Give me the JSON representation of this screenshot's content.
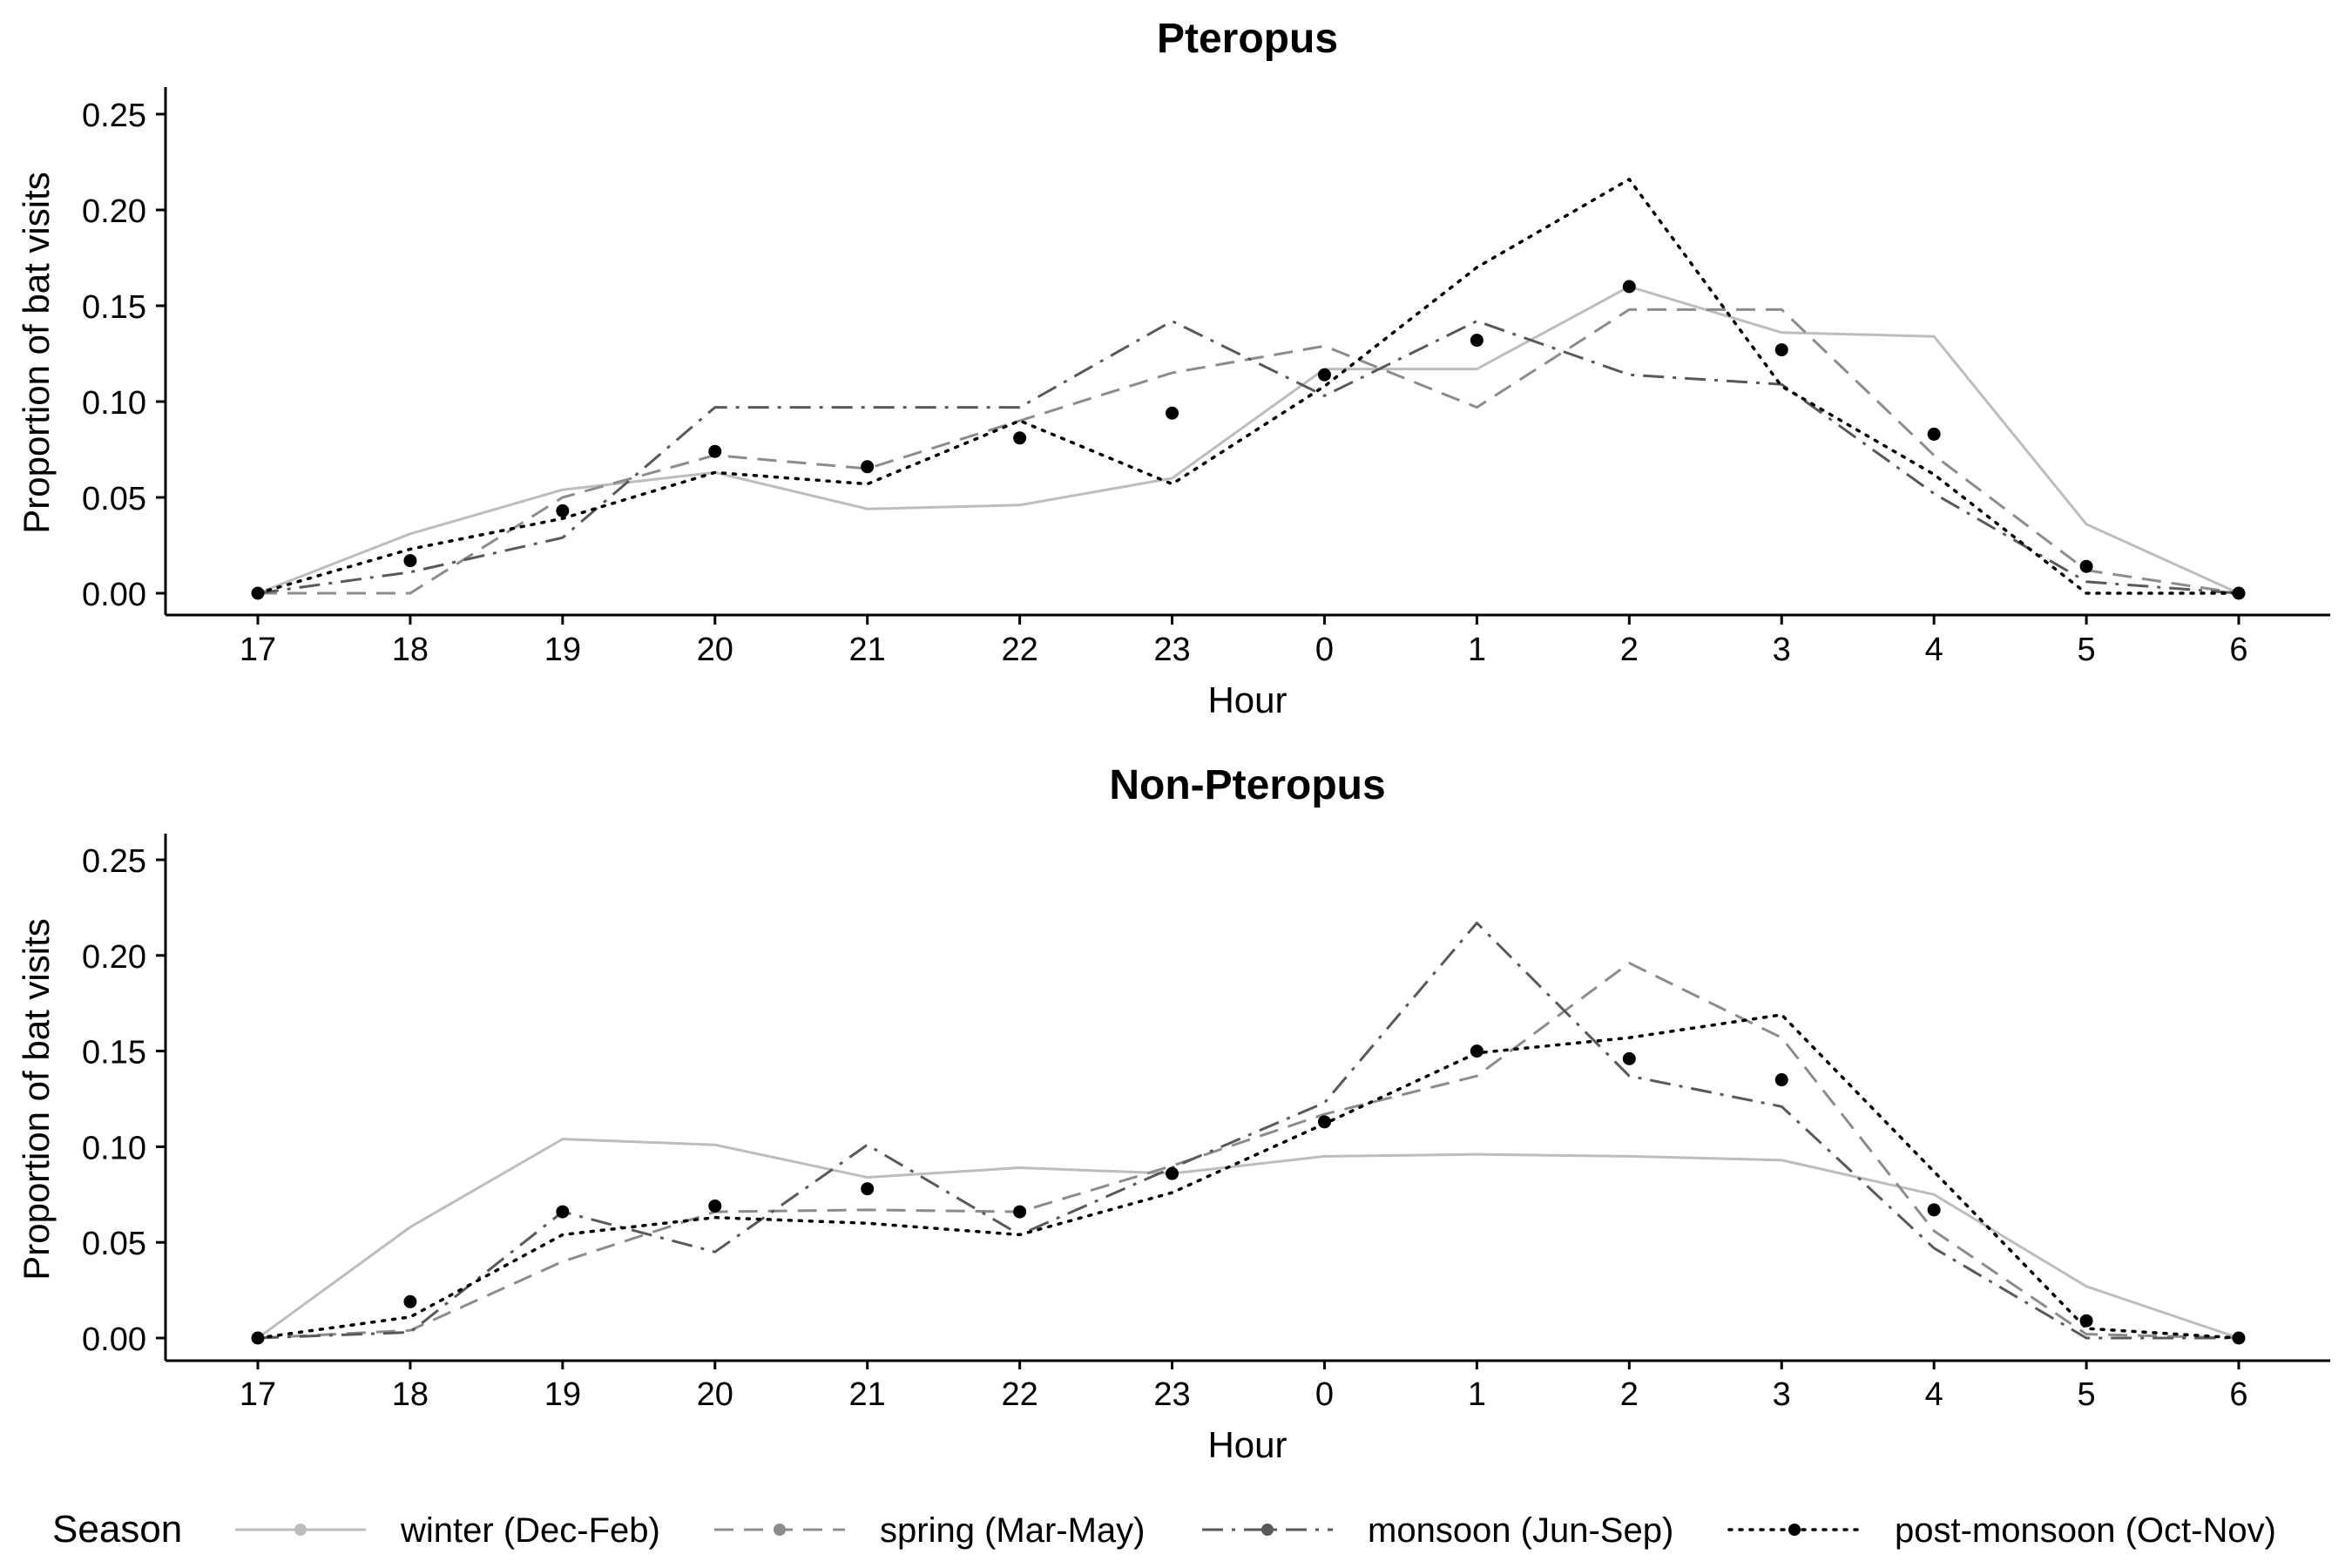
{
  "chart_data": [
    {
      "type": "line",
      "title": "Pteropus",
      "xlabel": "Hour",
      "ylabel": "Proportion of bat visits",
      "categories": [
        "17",
        "18",
        "19",
        "20",
        "21",
        "22",
        "23",
        "0",
        "1",
        "2",
        "3",
        "4",
        "5",
        "6"
      ],
      "ylim": [
        0,
        0.25
      ],
      "yticks": [
        "0.00",
        "0.05",
        "0.10",
        "0.15",
        "0.20",
        "0.25"
      ],
      "grid": false,
      "series": [
        {
          "name": "winter (Dec-Feb)",
          "values": [
            0,
            0.031,
            0.054,
            0.063,
            0.044,
            0.046,
            0.06,
            0.117,
            0.117,
            0.16,
            0.136,
            0.134,
            0.036,
            0
          ]
        },
        {
          "name": "spring (Mar-May)",
          "values": [
            0,
            0,
            0.05,
            0.072,
            0.065,
            0.09,
            0.115,
            0.129,
            0.097,
            0.148,
            0.148,
            0.072,
            0.012,
            0
          ]
        },
        {
          "name": "monsoon (Jun-Sep)",
          "values": [
            0,
            0.011,
            0.029,
            0.097,
            0.097,
            0.097,
            0.142,
            0.103,
            0.142,
            0.114,
            0.109,
            0.052,
            0.006,
            0
          ]
        },
        {
          "name": "post-monsoon (Oct-Nov)",
          "values": [
            0,
            0.023,
            0.039,
            0.063,
            0.057,
            0.09,
            0.057,
            0.108,
            0.17,
            0.216,
            0.108,
            0.062,
            0,
            0
          ]
        }
      ],
      "mean_points": [
        0,
        0.017,
        0.043,
        0.074,
        0.066,
        0.081,
        0.094,
        0.114,
        0.132,
        0.16,
        0.127,
        0.083,
        0.014,
        0
      ]
    },
    {
      "type": "line",
      "title": "Non-Pteropus",
      "xlabel": "Hour",
      "ylabel": "Proportion of bat visits",
      "categories": [
        "17",
        "18",
        "19",
        "20",
        "21",
        "22",
        "23",
        "0",
        "1",
        "2",
        "3",
        "4",
        "5",
        "6"
      ],
      "ylim": [
        0,
        0.25
      ],
      "yticks": [
        "0.00",
        "0.05",
        "0.10",
        "0.15",
        "0.20",
        "0.25"
      ],
      "grid": false,
      "series": [
        {
          "name": "winter (Dec-Feb)",
          "values": [
            0,
            0.058,
            0.104,
            0.101,
            0.084,
            0.089,
            0.086,
            0.095,
            0.096,
            0.095,
            0.093,
            0.075,
            0.027,
            0
          ]
        },
        {
          "name": "spring (Mar-May)",
          "values": [
            0,
            0.004,
            0.04,
            0.066,
            0.067,
            0.066,
            0.09,
            0.117,
            0.137,
            0.196,
            0.157,
            0.056,
            0.002,
            0
          ]
        },
        {
          "name": "monsoon (Jun-Sep)",
          "values": [
            0,
            0.003,
            0.066,
            0.045,
            0.101,
            0.054,
            0.089,
            0.123,
            0.217,
            0.137,
            0.121,
            0.047,
            0,
            0
          ]
        },
        {
          "name": "post-monsoon (Oct-Nov)",
          "values": [
            0,
            0.011,
            0.054,
            0.063,
            0.06,
            0.054,
            0.076,
            0.112,
            0.149,
            0.157,
            0.169,
            0.087,
            0.005,
            0
          ]
        }
      ],
      "mean_points": [
        0,
        0.019,
        0.066,
        0.069,
        0.078,
        0.066,
        0.086,
        0.113,
        0.15,
        0.146,
        0.135,
        0.067,
        0.009,
        0
      ]
    }
  ],
  "legend": {
    "title": "Season",
    "position": "bottom",
    "items": [
      {
        "label": "winter (Dec-Feb)",
        "color": "#bdbdbd",
        "dash": "solid"
      },
      {
        "label": "spring (Mar-May)",
        "color": "#8c8c8c",
        "dash": "dashed"
      },
      {
        "label": "monsoon (Jun-Sep)",
        "color": "#595959",
        "dash": "dotdash"
      },
      {
        "label": "post-monsoon (Oct-Nov)",
        "color": "#000000",
        "dash": "dotted"
      }
    ]
  }
}
